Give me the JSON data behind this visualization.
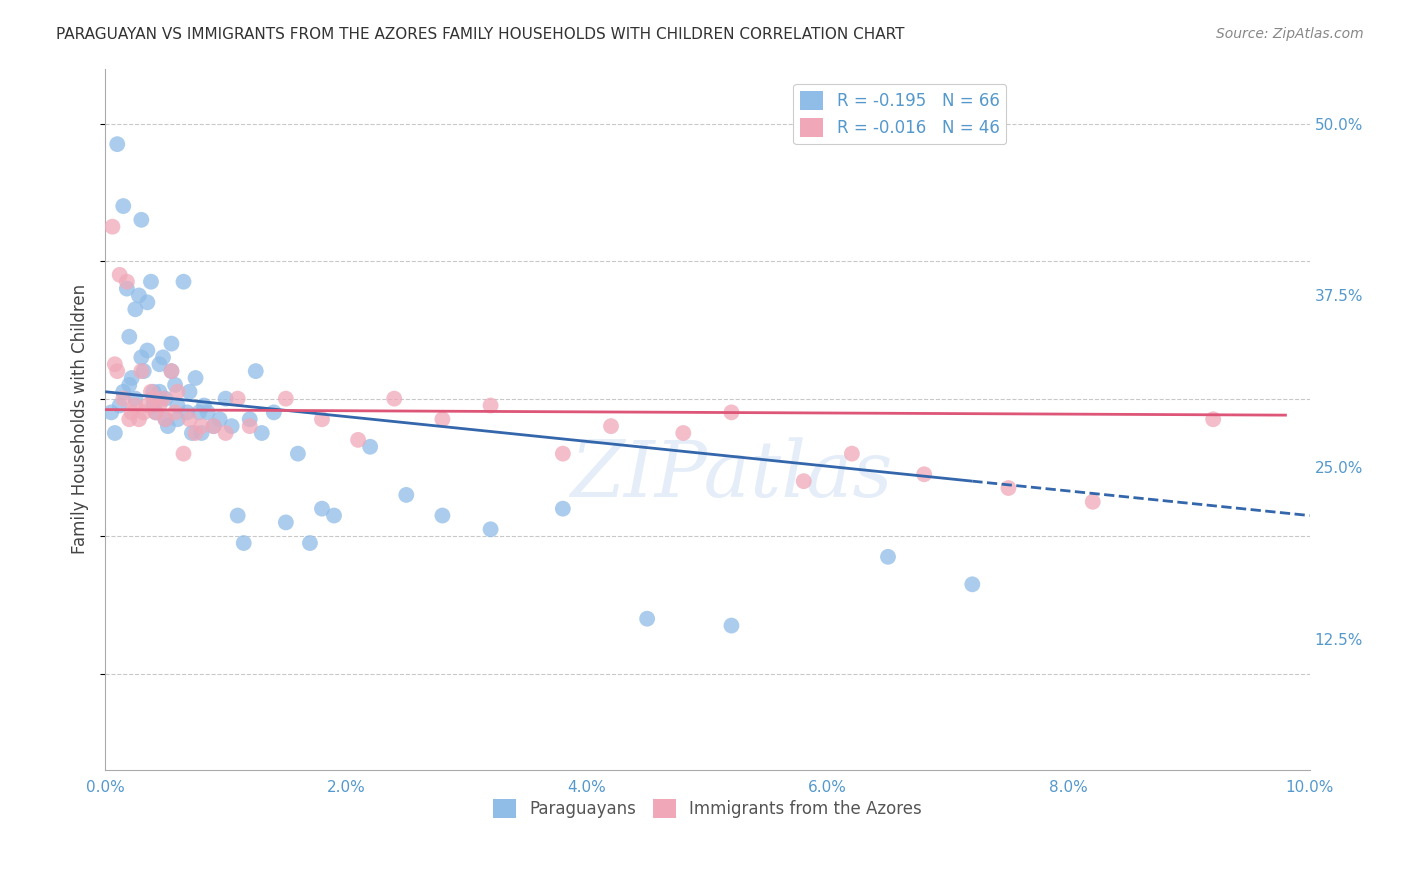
{
  "title": "PARAGUAYAN VS IMMIGRANTS FROM THE AZORES FAMILY HOUSEHOLDS WITH CHILDREN CORRELATION CHART",
  "source": "Source: ZipAtlas.com",
  "ylabel": "Family Households with Children",
  "xlim": [
    0.0,
    10.0
  ],
  "ylim": [
    3.0,
    54.0
  ],
  "xticks": [
    0.0,
    2.0,
    4.0,
    6.0,
    8.0,
    10.0
  ],
  "xtick_labels": [
    "0.0%",
    "2.0%",
    "4.0%",
    "6.0%",
    "8.0%",
    "10.0%"
  ],
  "yticks": [
    12.5,
    25.0,
    37.5,
    50.0
  ],
  "ytick_labels": [
    "12.5%",
    "25.0%",
    "37.5%",
    "50.0%"
  ],
  "watermark": "ZIPatlas",
  "blue_color": "#90bce8",
  "pink_color": "#f0a8b8",
  "blue_line_color": "#3366aa",
  "pink_line_color": "#dd5577",
  "background": "#ffffff",
  "grid_color": "#bbbbbb",
  "tick_color": "#5599cc",
  "paraguayan_x": [
    0.05,
    0.08,
    0.1,
    0.12,
    0.15,
    0.15,
    0.18,
    0.2,
    0.2,
    0.22,
    0.25,
    0.25,
    0.28,
    0.3,
    0.3,
    0.32,
    0.35,
    0.35,
    0.38,
    0.4,
    0.4,
    0.42,
    0.45,
    0.45,
    0.48,
    0.5,
    0.5,
    0.52,
    0.55,
    0.55,
    0.58,
    0.6,
    0.6,
    0.65,
    0.68,
    0.7,
    0.72,
    0.75,
    0.78,
    0.8,
    0.82,
    0.85,
    0.9,
    0.95,
    1.0,
    1.05,
    1.1,
    1.15,
    1.2,
    1.25,
    1.3,
    1.4,
    1.5,
    1.6,
    1.7,
    1.8,
    1.9,
    2.2,
    2.5,
    2.8,
    3.2,
    3.8,
    4.5,
    5.2,
    6.5,
    7.2
  ],
  "paraguayan_y": [
    29.0,
    27.5,
    48.5,
    29.5,
    44.0,
    30.5,
    38.0,
    34.5,
    31.0,
    31.5,
    36.5,
    30.0,
    37.5,
    43.0,
    33.0,
    32.0,
    37.0,
    33.5,
    38.5,
    30.5,
    29.5,
    29.0,
    32.5,
    30.5,
    33.0,
    30.0,
    28.5,
    28.0,
    34.0,
    32.0,
    31.0,
    28.5,
    29.5,
    38.5,
    29.0,
    30.5,
    27.5,
    31.5,
    29.0,
    27.5,
    29.5,
    29.0,
    28.0,
    28.5,
    30.0,
    28.0,
    21.5,
    19.5,
    28.5,
    32.0,
    27.5,
    29.0,
    21.0,
    26.0,
    19.5,
    22.0,
    21.5,
    26.5,
    23.0,
    21.5,
    20.5,
    22.0,
    14.0,
    13.5,
    18.5,
    16.5
  ],
  "azores_x": [
    0.06,
    0.08,
    0.1,
    0.12,
    0.15,
    0.18,
    0.2,
    0.22,
    0.25,
    0.28,
    0.3,
    0.32,
    0.35,
    0.38,
    0.4,
    0.42,
    0.45,
    0.48,
    0.5,
    0.55,
    0.58,
    0.6,
    0.65,
    0.7,
    0.75,
    0.8,
    0.9,
    1.0,
    1.1,
    1.2,
    1.5,
    1.8,
    2.1,
    2.4,
    2.8,
    3.2,
    3.8,
    4.2,
    4.8,
    5.2,
    5.8,
    6.2,
    6.8,
    7.5,
    8.2,
    9.2
  ],
  "azores_y": [
    42.5,
    32.5,
    32.0,
    39.0,
    30.0,
    38.5,
    28.5,
    29.0,
    29.5,
    28.5,
    32.0,
    29.0,
    29.5,
    30.5,
    30.0,
    29.0,
    29.5,
    30.0,
    28.5,
    32.0,
    29.0,
    30.5,
    26.0,
    28.5,
    27.5,
    28.0,
    28.0,
    27.5,
    30.0,
    28.0,
    30.0,
    28.5,
    27.0,
    30.0,
    28.5,
    29.5,
    26.0,
    28.0,
    27.5,
    29.0,
    24.0,
    26.0,
    24.5,
    23.5,
    22.5,
    28.5
  ],
  "blue_line_x0": 0.0,
  "blue_line_y0": 30.5,
  "blue_line_x1": 7.2,
  "blue_line_y1": 24.0,
  "blue_dash_x0": 7.2,
  "blue_dash_y0": 24.0,
  "blue_dash_x1": 10.0,
  "blue_dash_y1": 21.5,
  "pink_line_x0": 0.0,
  "pink_line_y0": 29.2,
  "pink_line_x1": 9.8,
  "pink_line_y1": 28.8
}
